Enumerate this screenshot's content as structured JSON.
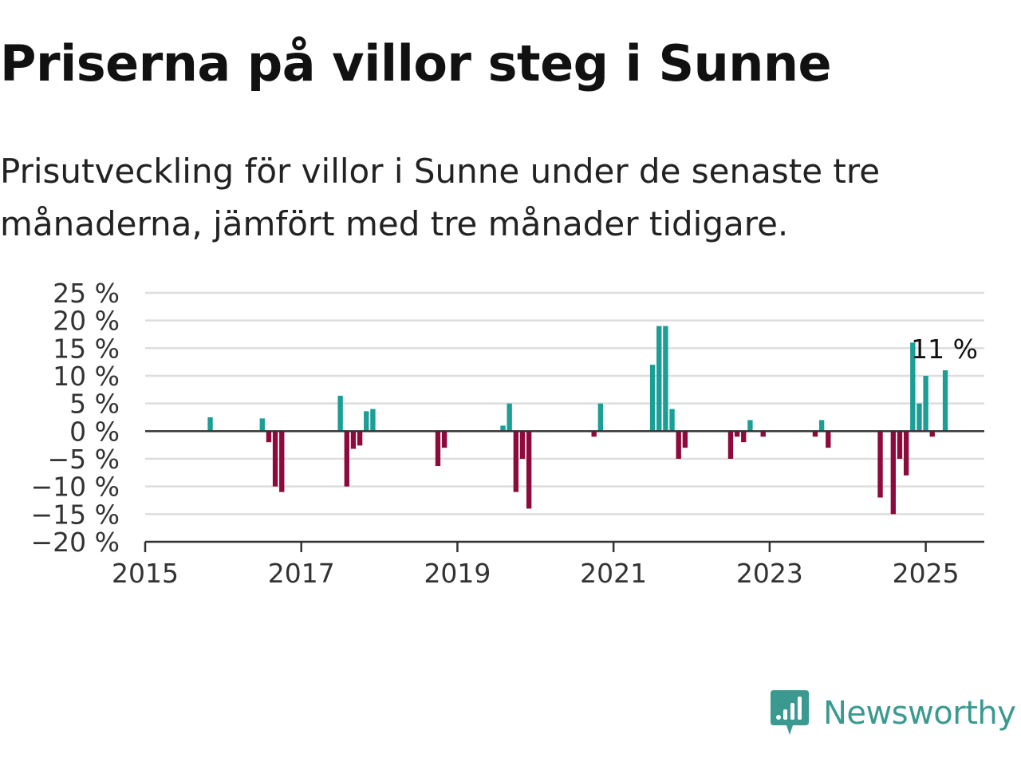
{
  "header": {
    "title": "Priserna på villor steg i Sunne",
    "subtitle": "Prisutveckling för villor i Sunne under de senaste tre månaderna, jämfört med tre månader tidigare."
  },
  "brand": {
    "name": "Newsworthy",
    "icon": "newsworthy-logo-icon",
    "color": "#3a9a8f"
  },
  "colors": {
    "positive": "#1a9e96",
    "negative": "#8e0a3d",
    "grid": "#dddddd",
    "axis": "#333333"
  },
  "chart_data": {
    "type": "bar",
    "x_type": "date",
    "xlim": [
      "2015-01",
      "2025-10"
    ],
    "ylim": [
      -20,
      25
    ],
    "yticks": [
      25,
      20,
      15,
      10,
      5,
      0,
      -5,
      -10,
      -15,
      -20
    ],
    "ytick_labels": [
      "25 %",
      "20 %",
      "15 %",
      "10 %",
      "5 %",
      "0 %",
      "−5 %",
      "−10 %",
      "−15 %",
      "−20 %"
    ],
    "xticks": [
      "2015-01",
      "2017-01",
      "2019-01",
      "2021-01",
      "2023-01",
      "2025-01"
    ],
    "xtick_labels": [
      "2015",
      "2017",
      "2019",
      "2021",
      "2023",
      "2025"
    ],
    "grid": true,
    "points": [
      {
        "x": "2015-11",
        "y": 2.5
      },
      {
        "x": "2016-07",
        "y": 2.3
      },
      {
        "x": "2016-08",
        "y": -2
      },
      {
        "x": "2016-09",
        "y": -10
      },
      {
        "x": "2016-10",
        "y": -11
      },
      {
        "x": "2017-07",
        "y": 6.4
      },
      {
        "x": "2017-08",
        "y": -10
      },
      {
        "x": "2017-09",
        "y": -3.2
      },
      {
        "x": "2017-10",
        "y": -2.6
      },
      {
        "x": "2017-11",
        "y": 3.6
      },
      {
        "x": "2017-12",
        "y": 4
      },
      {
        "x": "2018-10",
        "y": -6.3
      },
      {
        "x": "2018-11",
        "y": -3
      },
      {
        "x": "2019-08",
        "y": 1
      },
      {
        "x": "2019-09",
        "y": 5
      },
      {
        "x": "2019-10",
        "y": -11
      },
      {
        "x": "2019-11",
        "y": -5
      },
      {
        "x": "2019-12",
        "y": -14
      },
      {
        "x": "2020-10",
        "y": -1
      },
      {
        "x": "2020-11",
        "y": 5
      },
      {
        "x": "2021-07",
        "y": 12
      },
      {
        "x": "2021-08",
        "y": 19
      },
      {
        "x": "2021-09",
        "y": 19
      },
      {
        "x": "2021-10",
        "y": 4
      },
      {
        "x": "2021-11",
        "y": -5
      },
      {
        "x": "2021-12",
        "y": -3
      },
      {
        "x": "2022-07",
        "y": -5
      },
      {
        "x": "2022-08",
        "y": -1
      },
      {
        "x": "2022-09",
        "y": -2
      },
      {
        "x": "2022-10",
        "y": 2
      },
      {
        "x": "2022-12",
        "y": -1
      },
      {
        "x": "2023-08",
        "y": -1
      },
      {
        "x": "2023-09",
        "y": 2
      },
      {
        "x": "2023-10",
        "y": -3
      },
      {
        "x": "2024-06",
        "y": -12
      },
      {
        "x": "2024-08",
        "y": -15
      },
      {
        "x": "2024-09",
        "y": -5
      },
      {
        "x": "2024-10",
        "y": -8
      },
      {
        "x": "2024-11",
        "y": 16
      },
      {
        "x": "2024-12",
        "y": 5
      },
      {
        "x": "2025-01",
        "y": 10
      },
      {
        "x": "2025-02",
        "y": -1
      },
      {
        "x": "2025-04",
        "y": 11
      }
    ],
    "annotation": {
      "text": "11 %",
      "x": "2025-04",
      "y": 11
    }
  }
}
